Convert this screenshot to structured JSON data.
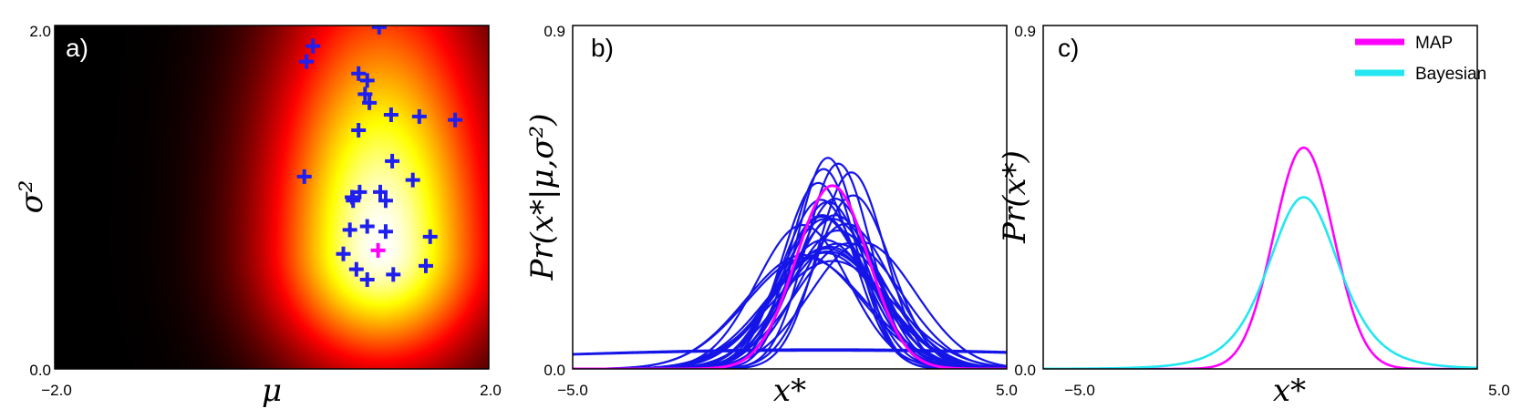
{
  "panels": [
    {
      "id": "a",
      "label": "a)",
      "type": "heatmap",
      "xlabel": "μ",
      "ylabel": "σ²",
      "xlim": [
        -2.0,
        2.0
      ],
      "ylim": [
        0.0,
        2.0
      ],
      "x_ticks": [
        "−2.0",
        "2.0"
      ],
      "y_ticks": [
        "2.0",
        "0.0"
      ],
      "colormap": "hot",
      "peak": {
        "mu": 1.0,
        "sigma2": 0.7
      },
      "sample_color": "#1f1ff0",
      "map_color": "#ff00ff",
      "map_estimate": {
        "mu": 0.98,
        "sigma2": 0.69
      },
      "samples": [
        [
          0.99,
          1.99
        ],
        [
          0.38,
          1.88
        ],
        [
          0.32,
          1.79
        ],
        [
          0.8,
          1.72
        ],
        [
          0.88,
          1.68
        ],
        [
          0.86,
          1.6
        ],
        [
          0.9,
          1.55
        ],
        [
          1.1,
          1.48
        ],
        [
          1.36,
          1.47
        ],
        [
          1.69,
          1.45
        ],
        [
          0.8,
          1.39
        ],
        [
          1.11,
          1.21
        ],
        [
          0.3,
          1.12
        ],
        [
          1.3,
          1.1
        ],
        [
          0.81,
          1.03
        ],
        [
          0.74,
          1.0
        ],
        [
          0.75,
          0.98
        ],
        [
          1.0,
          1.03
        ],
        [
          1.05,
          0.98
        ],
        [
          0.72,
          0.81
        ],
        [
          0.88,
          0.83
        ],
        [
          1.05,
          0.8
        ],
        [
          1.46,
          0.77
        ],
        [
          0.66,
          0.67
        ],
        [
          0.78,
          0.58
        ],
        [
          1.42,
          0.6
        ],
        [
          0.88,
          0.52
        ],
        [
          1.12,
          0.55
        ]
      ]
    },
    {
      "id": "b",
      "label": "b)",
      "type": "line",
      "xlabel": "x*",
      "ylabel": "Pr(x*|μ,σ²)",
      "xlim": [
        -5.0,
        5.0
      ],
      "ylim": [
        0.0,
        0.9
      ],
      "x_ticks": [
        "−5.0",
        "5.0"
      ],
      "y_ticks": [
        "0.9",
        "0.0"
      ],
      "sample_color": "#1515e8",
      "map_color": "#ff00ff",
      "map_curve": {
        "mu": 0.98,
        "sigma2": 0.69
      },
      "extra_flat_curves": [
        {
          "mu": 0.8,
          "sigma2": 60.0
        },
        {
          "mu": 0.8,
          "sigma2": 70.0
        }
      ]
    },
    {
      "id": "c",
      "label": "c)",
      "type": "line",
      "xlabel": "x*",
      "ylabel": "Pr(x*)",
      "xlim": [
        -5.0,
        5.0
      ],
      "ylim": [
        0.0,
        0.9
      ],
      "x_ticks": [
        "−5.0",
        "5.0"
      ],
      "y_ticks": [
        "0.9",
        "0.0"
      ],
      "series": [
        {
          "name": "MAP",
          "color": "#ff00ff",
          "kind": "normal",
          "mu": 1.0,
          "sigma": 0.69,
          "peak": 0.58
        },
        {
          "name": "Bayesian",
          "color": "#22e6f0",
          "kind": "student",
          "mu": 1.0,
          "peak": 0.45,
          "scale": 0.85,
          "nu": 5
        }
      ],
      "legend_position": "top-right"
    }
  ]
}
